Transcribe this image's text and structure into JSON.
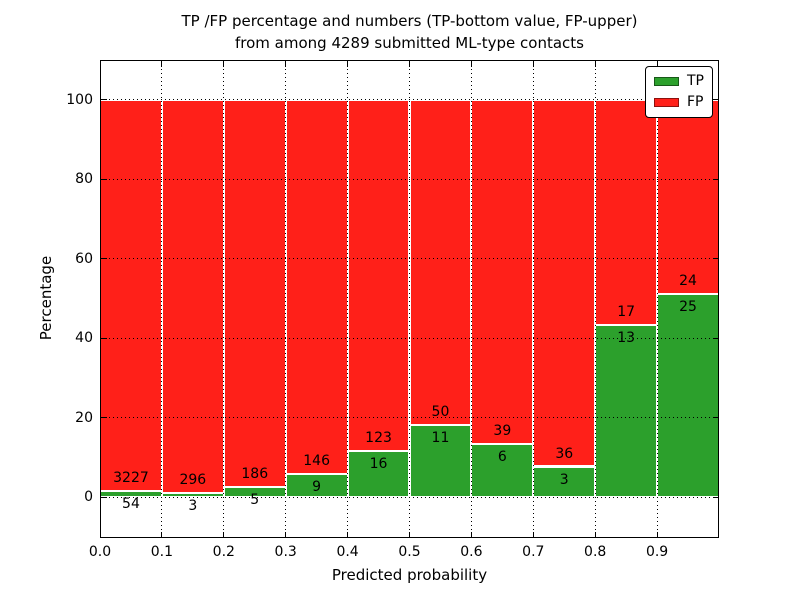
{
  "page": {
    "background": "#ffffff"
  },
  "chart_data": {
    "type": "bar",
    "stacked": true,
    "title": "TP /FP percentage and numbers (TP-bottom value, FP-upper)",
    "subtitle": "from among 4289 submitted ML-type contacts",
    "xlabel": "Predicted probability",
    "ylabel": "Percentage",
    "bin_width": 0.1,
    "bin_starts": [
      0.0,
      0.1,
      0.2,
      0.3,
      0.4,
      0.5,
      0.6,
      0.7,
      0.8,
      0.9
    ],
    "series": [
      {
        "name": "TP",
        "color": "#2ca02c",
        "counts": [
          54,
          3,
          5,
          9,
          16,
          11,
          6,
          3,
          13,
          25
        ]
      },
      {
        "name": "FP",
        "color": "#ff2019",
        "counts": [
          3227,
          296,
          186,
          146,
          123,
          50,
          39,
          36,
          17,
          24
        ]
      }
    ],
    "bar_value_note": "each bin stacked to 100%; green segment height = TP/(TP+FP)*100, counts printed at segment boundary (TP below, FP above)",
    "xticks": [
      "0.0",
      "0.1",
      "0.2",
      "0.3",
      "0.4",
      "0.5",
      "0.6",
      "0.7",
      "0.8",
      "0.9"
    ],
    "yticks": [
      "0",
      "20",
      "40",
      "60",
      "80",
      "100"
    ],
    "xlim": [
      0,
      1
    ],
    "ylim": [
      -10.3,
      110
    ],
    "grid": {
      "on": true,
      "style": "dotted",
      "color": "#000000"
    },
    "legend": {
      "position": "upper right",
      "entries": [
        "TP",
        "FP"
      ]
    }
  }
}
